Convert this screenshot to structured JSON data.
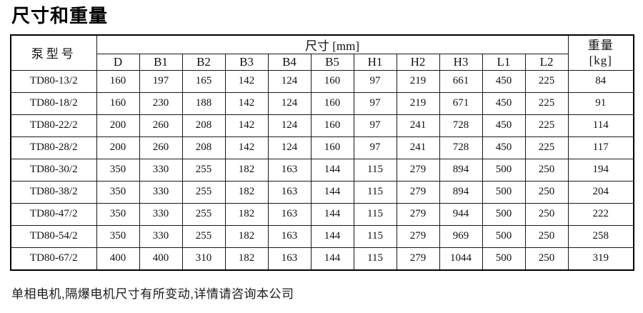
{
  "title": "尺寸和重量",
  "table": {
    "col_model_header": "泵型号",
    "dims_header": "尺寸 [mm]",
    "weight_header_line1": "重量",
    "weight_header_line2": "[kg]",
    "dim_columns": [
      "D",
      "B1",
      "B2",
      "B3",
      "B4",
      "B5",
      "H1",
      "H2",
      "H3",
      "L1",
      "L2"
    ],
    "rows": [
      {
        "model": "TD80-13/2",
        "values": [
          "160",
          "197",
          "165",
          "142",
          "124",
          "160",
          "97",
          "219",
          "661",
          "450",
          "225"
        ],
        "weight": "84"
      },
      {
        "model": "TD80-18/2",
        "values": [
          "160",
          "230",
          "188",
          "142",
          "124",
          "160",
          "97",
          "219",
          "671",
          "450",
          "225"
        ],
        "weight": "91"
      },
      {
        "model": "TD80-22/2",
        "values": [
          "200",
          "260",
          "208",
          "142",
          "124",
          "160",
          "97",
          "241",
          "728",
          "450",
          "225"
        ],
        "weight": "114"
      },
      {
        "model": "TD80-28/2",
        "values": [
          "200",
          "260",
          "208",
          "142",
          "124",
          "160",
          "97",
          "241",
          "728",
          "450",
          "225"
        ],
        "weight": "117"
      },
      {
        "model": "TD80-30/2",
        "values": [
          "350",
          "330",
          "255",
          "182",
          "163",
          "144",
          "115",
          "279",
          "894",
          "500",
          "250"
        ],
        "weight": "194"
      },
      {
        "model": "TD80-38/2",
        "values": [
          "350",
          "330",
          "255",
          "182",
          "163",
          "144",
          "115",
          "279",
          "894",
          "500",
          "250"
        ],
        "weight": "204"
      },
      {
        "model": "TD80-47/2",
        "values": [
          "350",
          "330",
          "255",
          "182",
          "163",
          "144",
          "115",
          "279",
          "944",
          "500",
          "250"
        ],
        "weight": "222"
      },
      {
        "model": "TD80-54/2",
        "values": [
          "350",
          "330",
          "255",
          "182",
          "163",
          "144",
          "115",
          "279",
          "969",
          "500",
          "250"
        ],
        "weight": "258"
      },
      {
        "model": "TD80-67/2",
        "values": [
          "400",
          "400",
          "310",
          "182",
          "163",
          "144",
          "115",
          "279",
          "1044",
          "500",
          "250"
        ],
        "weight": "319"
      }
    ]
  },
  "footer_note": "单相电机,隔爆电机尺寸有所变动,详情请咨询本公司"
}
